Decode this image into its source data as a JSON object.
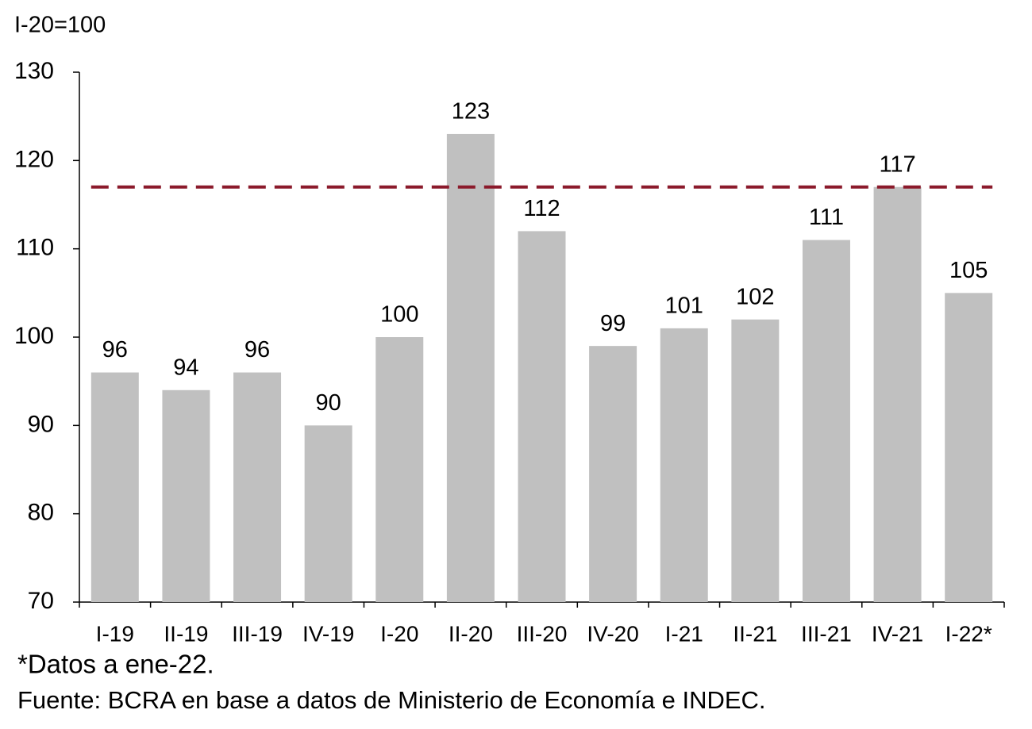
{
  "chart_data": {
    "type": "bar",
    "y_label": "I-20=100",
    "categories": [
      "I-19",
      "II-19",
      "III-19",
      "IV-19",
      "I-20",
      "II-20",
      "III-20",
      "IV-20",
      "I-21",
      "II-21",
      "III-21",
      "IV-21",
      "I-22*"
    ],
    "values": [
      96,
      94,
      96,
      90,
      100,
      123,
      112,
      99,
      101,
      102,
      111,
      117,
      105
    ],
    "color": "#c0c0c0",
    "ylim": [
      70,
      130
    ],
    "yticks": [
      70,
      80,
      90,
      100,
      110,
      120,
      130
    ],
    "reference_line": {
      "value": 117,
      "color": "#8b1a2b"
    },
    "note": "*Datos a ene-22.",
    "source": "Fuente: BCRA en base a datos de Ministerio de Economía e INDEC."
  }
}
